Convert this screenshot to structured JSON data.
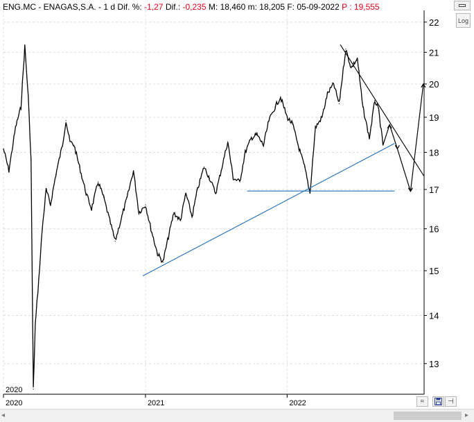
{
  "header": {
    "symbol": "ENG.MC - ENAGAS,S.A.",
    "sep": "-",
    "period": "1 d",
    "dif_pct_label": "Dif. %:",
    "dif_pct_value": "-1,27",
    "dif_label": "Dif.:",
    "dif_value": "-0,235",
    "max_label": "M:",
    "max_value": "18,460",
    "min_label": "m:",
    "min_value": "18,205",
    "date_label": "F:",
    "date_value": "05-09-2022",
    "price_label": "P :",
    "price_value": "19,555"
  },
  "controls": {
    "log_label": "Log",
    "scroll_left": "◂",
    "scroll_right": "▸",
    "save_icon": "save-icon",
    "pin_icon": "pin-icon",
    "wave_icon": "wave-icon",
    "window_icon": "window-icon"
  },
  "colors": {
    "price": "#000000",
    "trendline": "#1f6fb8",
    "red": "#e8001c",
    "grid": "#dcdcdc"
  },
  "chart_data": {
    "type": "line",
    "title": "",
    "xlabel": "",
    "ylabel": "",
    "y_scale": "log",
    "ylim": [
      12.4,
      22.4
    ],
    "xlim": [
      "2020-01-01",
      "2022-12-20"
    ],
    "y_ticks": [
      13,
      14,
      15,
      16,
      17,
      18,
      19,
      20,
      21,
      22
    ],
    "y_tick_labels": [
      "13",
      "14",
      "15",
      "16",
      "17",
      "18",
      "19",
      "20",
      "21",
      "22"
    ],
    "x_ticks": [
      "2020-01-01",
      "2021-01-01",
      "2022-01-01"
    ],
    "x_tick_labels": [
      "2020",
      "2021",
      "2022"
    ],
    "year_marker_label": "2020",
    "grid": true,
    "series": [
      {
        "name": "",
        "x": [
          "2020-01-01",
          "2020-01-15",
          "2020-02-01",
          "2020-02-15",
          "2020-02-25",
          "2020-03-05",
          "2020-03-12",
          "2020-03-16",
          "2020-03-18",
          "2020-03-23",
          "2020-04-01",
          "2020-04-10",
          "2020-04-20",
          "2020-05-01",
          "2020-05-15",
          "2020-06-01",
          "2020-06-10",
          "2020-06-20",
          "2020-07-01",
          "2020-07-15",
          "2020-08-01",
          "2020-08-15",
          "2020-09-01",
          "2020-09-15",
          "2020-10-01",
          "2020-10-15",
          "2020-11-01",
          "2020-11-15",
          "2020-12-01",
          "2020-12-15",
          "2021-01-01",
          "2021-01-15",
          "2021-02-01",
          "2021-02-15",
          "2021-03-01",
          "2021-03-15",
          "2021-04-01",
          "2021-04-15",
          "2021-05-01",
          "2021-05-15",
          "2021-06-01",
          "2021-06-15",
          "2021-07-01",
          "2021-07-15",
          "2021-08-01",
          "2021-08-15",
          "2021-09-01",
          "2021-09-15",
          "2021-10-01",
          "2021-10-15",
          "2021-11-01",
          "2021-11-15",
          "2021-12-01",
          "2021-12-15",
          "2022-01-01",
          "2022-01-15",
          "2022-02-01",
          "2022-02-15",
          "2022-03-01",
          "2022-03-08",
          "2022-03-15",
          "2022-04-01",
          "2022-04-15",
          "2022-05-01",
          "2022-05-15",
          "2022-06-01",
          "2022-06-15",
          "2022-07-01",
          "2022-07-15",
          "2022-08-01",
          "2022-08-15",
          "2022-08-25",
          "2022-09-05"
        ],
        "values": [
          18.1,
          17.5,
          18.7,
          19.3,
          21.2,
          19.6,
          17.8,
          14.0,
          12.5,
          13.8,
          14.8,
          16.0,
          17.0,
          16.6,
          17.4,
          18.2,
          18.9,
          18.3,
          18.2,
          17.6,
          16.9,
          16.5,
          17.2,
          16.8,
          16.2,
          15.7,
          16.3,
          16.8,
          17.5,
          16.4,
          16.6,
          16.0,
          15.4,
          15.2,
          15.8,
          16.4,
          16.2,
          16.9,
          16.3,
          17.0,
          17.6,
          17.3,
          16.9,
          17.5,
          18.3,
          17.3,
          17.2,
          18.0,
          18.4,
          18.5,
          18.2,
          18.9,
          19.3,
          19.6,
          19.0,
          18.8,
          18.1,
          17.6,
          16.9,
          17.8,
          18.7,
          19.0,
          19.7,
          20.0,
          19.4,
          21.1,
          20.5,
          20.8,
          19.3,
          18.4,
          19.5,
          19.2,
          18.2
        ]
      }
    ],
    "trendlines": [
      {
        "color": "#1f6fb8",
        "x": [
          "2020-12-25",
          "2022-10-05"
        ],
        "y": [
          14.88,
          18.25
        ]
      },
      {
        "color": "#1f6fb8",
        "x": [
          "2021-09-20",
          "2022-10-05"
        ],
        "y": [
          16.96,
          16.96
        ]
      },
      {
        "color": "#000000",
        "x": [
          "2022-05-18",
          "2022-12-20"
        ],
        "y": [
          21.25,
          17.35
        ]
      }
    ],
    "projection": {
      "color": "#000000",
      "x": [
        "2022-09-05",
        "2022-09-22",
        "2022-10-12",
        "2022-11-15",
        "2022-12-18"
      ],
      "y": [
        18.2,
        18.78,
        18.1,
        16.95,
        20.0
      ]
    }
  }
}
